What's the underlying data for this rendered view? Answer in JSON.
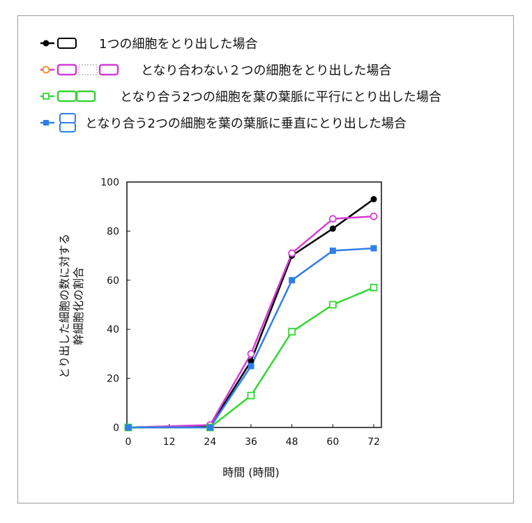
{
  "chart_data": {
    "type": "line",
    "title": "",
    "xlabel": "時間 (時間)",
    "ylabel": [
      "とり出した細胞の数に対する",
      "幹細胞化の割合"
    ],
    "x": [
      0,
      12,
      24,
      36,
      48,
      60,
      72
    ],
    "xticks": [
      "0",
      "12",
      "24",
      "36",
      "48",
      "60",
      "72"
    ],
    "yticks": [
      "0",
      "20",
      "40",
      "60",
      "80",
      "100"
    ],
    "xlim": [
      0,
      72
    ],
    "ylim": [
      0,
      100
    ],
    "grid": false,
    "legend_placement": "top-left",
    "series": [
      {
        "name": "1つの細胞をとり出した場合",
        "color": "#000000",
        "marker": "filled-circle",
        "icon": "single-cell-icon",
        "x": [
          0,
          24,
          36,
          48,
          60,
          72
        ],
        "values": [
          0,
          0.5,
          27,
          70,
          81,
          93
        ]
      },
      {
        "name": "となり合わない２つの細胞をとり出した場合",
        "color": "#d63bd6",
        "marker": "open-circle",
        "icon": "two-separated-cells-icon",
        "x": [
          0,
          24,
          36,
          48,
          60,
          72
        ],
        "values": [
          0,
          1,
          30,
          71,
          85,
          86
        ]
      },
      {
        "name": "となり合う2つの細胞を葉の葉脈に平行にとり出した場合",
        "color": "#33d633",
        "marker": "open-square",
        "icon": "two-cells-parallel-icon",
        "x": [
          0,
          24,
          36,
          48,
          60,
          72
        ],
        "values": [
          0,
          0,
          13,
          39,
          50,
          57
        ]
      },
      {
        "name": "となり合う2つの細胞を葉の葉脈に垂直にとり出した場合",
        "color": "#2f7ee8",
        "marker": "filled-square",
        "icon": "two-cells-perpendicular-icon",
        "x": [
          0,
          24,
          36,
          48,
          60,
          72
        ],
        "values": [
          0,
          0,
          25,
          60,
          72,
          73
        ]
      }
    ]
  }
}
